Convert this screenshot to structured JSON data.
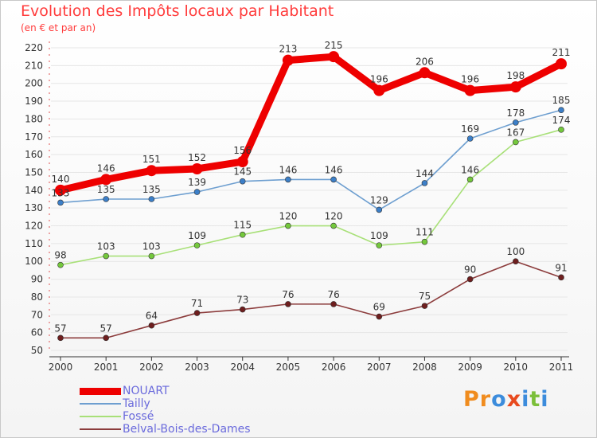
{
  "title": "Evolution des Impôts locaux par Habitant",
  "subtitle": "(en € et par an)",
  "brand": {
    "letters": [
      "P",
      "r",
      "o",
      "x",
      "i",
      "t",
      "i"
    ],
    "colors": [
      "#f08c1e",
      "#f08c1e",
      "#3c8cdc",
      "#e84a1e",
      "#3c8cdc",
      "#7cbf3a",
      "#3c8cdc"
    ]
  },
  "chart_data": {
    "type": "line",
    "title": "Evolution des Impôts locaux par Habitant",
    "subtitle": "(en € et par an)",
    "xlabel": "",
    "ylabel": "",
    "ylim": [
      50,
      220
    ],
    "y_ticks": [
      "50",
      "60",
      "70",
      "80",
      "90",
      "100",
      "110",
      "120",
      "130",
      "140",
      "150",
      "160",
      "170",
      "180",
      "190",
      "200",
      "210",
      "220"
    ],
    "x": [
      "2000",
      "2001",
      "2002",
      "2003",
      "2004",
      "2005",
      "2006",
      "2007",
      "2008",
      "2009",
      "2010",
      "2011"
    ],
    "legend_position": "bottom-left",
    "series": [
      {
        "name": "NOUART",
        "color": "#ee0000",
        "marker": "#ee0000",
        "values": [
          140,
          146,
          151,
          152,
          156,
          213,
          215,
          196,
          206,
          196,
          198,
          211
        ]
      },
      {
        "name": "Tailly",
        "color": "#6e9fd0",
        "marker": "#3c7fc8",
        "values": [
          133,
          135,
          135,
          139,
          145,
          146,
          146,
          129,
          144,
          169,
          178,
          185
        ]
      },
      {
        "name": "Fossé",
        "color": "#a8e078",
        "marker": "#74c83c",
        "values": [
          98,
          103,
          103,
          109,
          115,
          120,
          120,
          109,
          111,
          146,
          167,
          174
        ]
      },
      {
        "name": "Belval-Bois-des-Dames",
        "color": "#8c3c3c",
        "marker": "#6e1e1e",
        "values": [
          57,
          57,
          64,
          71,
          73,
          76,
          76,
          69,
          75,
          90,
          100,
          91
        ]
      }
    ]
  }
}
